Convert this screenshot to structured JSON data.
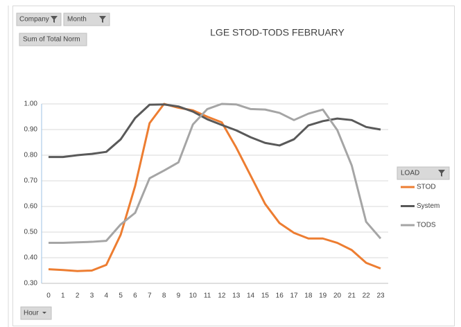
{
  "chart_data": {
    "type": "line",
    "title": "LGE STOD-TODS FEBRUARY",
    "filters": [
      "Company",
      "Month"
    ],
    "value_field": "Sum of Total Norm",
    "axis_field": "Hour",
    "legend_title": "LOAD",
    "categories": [
      "0",
      "1",
      "2",
      "3",
      "4",
      "5",
      "6",
      "7",
      "8",
      "9",
      "10",
      "11",
      "12",
      "13",
      "14",
      "15",
      "16",
      "17",
      "18",
      "19",
      "20",
      "21",
      "22",
      "23"
    ],
    "series": [
      {
        "name": "STOD",
        "color": "#ed7d31",
        "values": [
          0.355,
          0.352,
          0.348,
          0.35,
          0.372,
          0.49,
          0.68,
          0.925,
          1.0,
          0.985,
          0.975,
          0.95,
          0.928,
          0.83,
          0.72,
          0.61,
          0.535,
          0.497,
          0.475,
          0.475,
          0.458,
          0.43,
          0.38,
          0.358
        ]
      },
      {
        "name": "System",
        "color": "#595959",
        "values": [
          0.793,
          0.793,
          0.8,
          0.805,
          0.813,
          0.862,
          0.945,
          0.997,
          0.998,
          0.99,
          0.97,
          0.94,
          0.918,
          0.897,
          0.87,
          0.848,
          0.838,
          0.862,
          0.916,
          0.933,
          0.943,
          0.937,
          0.91,
          0.9
        ]
      },
      {
        "name": "TODS",
        "color": "#a5a5a5",
        "values": [
          0.458,
          0.458,
          0.46,
          0.462,
          0.466,
          0.53,
          0.575,
          0.71,
          0.74,
          0.772,
          0.92,
          0.98,
          1.0,
          0.998,
          0.98,
          0.978,
          0.965,
          0.937,
          0.962,
          0.978,
          0.898,
          0.76,
          0.54,
          0.475
        ]
      }
    ],
    "ylim": [
      0.3,
      1.0
    ],
    "yticks": [
      {
        "value": 0.3,
        "label": "0.30"
      },
      {
        "value": 0.4,
        "label": "0.40"
      },
      {
        "value": 0.5,
        "label": "0.50"
      },
      {
        "value": 0.6,
        "label": "0.60"
      },
      {
        "value": 0.7,
        "label": "0.70"
      },
      {
        "value": 0.8,
        "label": "0.80"
      },
      {
        "value": 0.9,
        "label": "0.90"
      },
      {
        "value": 1.0,
        "label": "1.00"
      }
    ],
    "grid": true,
    "legend_position": "right"
  }
}
